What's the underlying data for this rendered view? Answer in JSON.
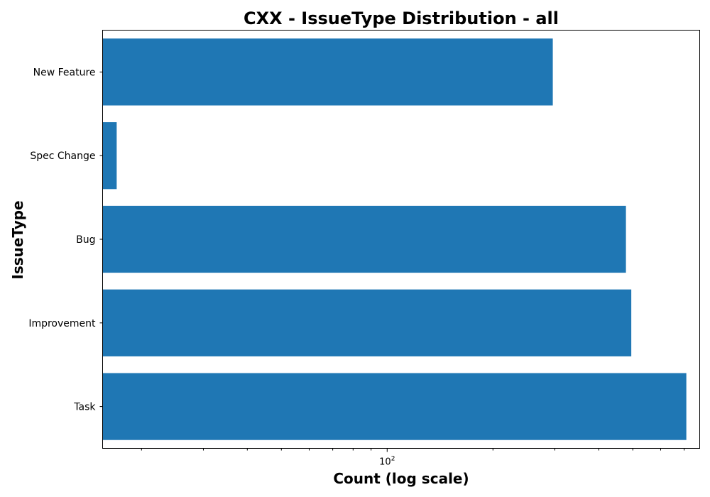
{
  "chart_data": {
    "type": "bar",
    "orientation": "horizontal",
    "title": "CXX - IssueType Distribution - all",
    "xlabel": "Count (log scale)",
    "ylabel": "IssueType",
    "x_scale": "log",
    "xlim": [
      15.5,
      775
    ],
    "x_major_ticks": [
      100
    ],
    "x_major_tick_labels": [
      "10^2"
    ],
    "x_minor_ticks": [
      20,
      30,
      40,
      50,
      60,
      70,
      80,
      90,
      200,
      300,
      400,
      500,
      600,
      700
    ],
    "categories": [
      "New Feature",
      "Spec Change",
      "Bug",
      "Improvement",
      "Task"
    ],
    "values": [
      296,
      17,
      478,
      495,
      710
    ],
    "bar_color": "#1f77b4",
    "grid": false,
    "legend": "none"
  }
}
